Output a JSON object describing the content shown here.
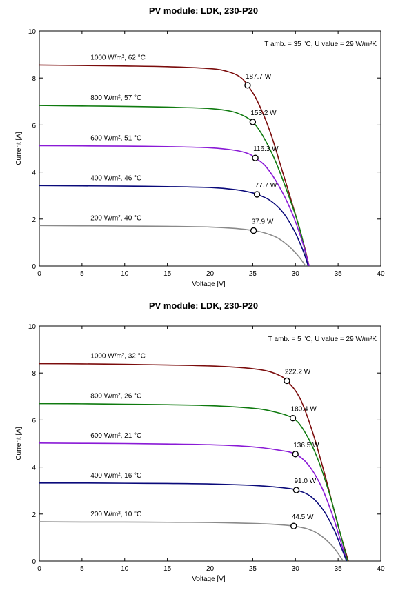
{
  "chart_data": [
    {
      "type": "line",
      "title": "PV module:  LDK,  230-P20",
      "annotation": "T amb. = 35 °C,  U value = 29 W/m²K",
      "xlabel": "Voltage [V]",
      "ylabel": "Current [A]",
      "xlim": [
        0,
        40
      ],
      "ylim": [
        0,
        10
      ],
      "xticks": [
        0,
        5,
        10,
        15,
        20,
        25,
        30,
        35,
        40
      ],
      "yticks": [
        0,
        2,
        4,
        6,
        8,
        10
      ],
      "grid": false,
      "series": [
        {
          "name": "1000 W/m², 62 °C",
          "color": "#7b0c0c",
          "isc": 8.55,
          "voc": 31.6,
          "mpp": {
            "v": 24.4,
            "i": 7.69,
            "label": "187.7 W"
          },
          "points": [
            [
              0,
              8.55
            ],
            [
              5,
              8.53
            ],
            [
              10,
              8.51
            ],
            [
              15,
              8.48
            ],
            [
              20,
              8.4
            ],
            [
              22,
              8.28
            ],
            [
              23.5,
              8.05
            ],
            [
              24.4,
              7.69
            ],
            [
              25.5,
              7.05
            ],
            [
              27,
              5.75
            ],
            [
              28.5,
              4.0
            ],
            [
              30,
              2.2
            ],
            [
              31,
              0.9
            ],
            [
              31.6,
              0
            ]
          ]
        },
        {
          "name": "800 W/m², 57 °C",
          "color": "#0f7a0f",
          "isc": 6.83,
          "voc": 31.5,
          "mpp": {
            "v": 25.0,
            "i": 6.13,
            "label": "153.2 W"
          },
          "points": [
            [
              0,
              6.83
            ],
            [
              5,
              6.81
            ],
            [
              10,
              6.79
            ],
            [
              15,
              6.76
            ],
            [
              20,
              6.7
            ],
            [
              22.5,
              6.58
            ],
            [
              24,
              6.38
            ],
            [
              25.0,
              6.13
            ],
            [
              26,
              5.65
            ],
            [
              27.5,
              4.6
            ],
            [
              29,
              3.2
            ],
            [
              30.5,
              1.6
            ],
            [
              31.5,
              0
            ]
          ]
        },
        {
          "name": "600 W/m², 51 °C",
          "color": "#8a1ad6",
          "isc": 5.12,
          "voc": 31.6,
          "mpp": {
            "v": 25.3,
            "i": 4.6,
            "label": "116.3 W"
          },
          "points": [
            [
              0,
              5.12
            ],
            [
              5,
              5.11
            ],
            [
              10,
              5.1
            ],
            [
              15,
              5.08
            ],
            [
              20,
              5.03
            ],
            [
              23,
              4.92
            ],
            [
              24.5,
              4.78
            ],
            [
              25.3,
              4.6
            ],
            [
              26.5,
              4.25
            ],
            [
              28,
              3.45
            ],
            [
              29.5,
              2.35
            ],
            [
              30.8,
              1.05
            ],
            [
              31.6,
              0
            ]
          ]
        },
        {
          "name": "400 W/m², 46 °C",
          "color": "#0a0a7a",
          "isc": 3.42,
          "voc": 31.5,
          "mpp": {
            "v": 25.5,
            "i": 3.05,
            "label": "77.7 W"
          },
          "points": [
            [
              0,
              3.42
            ],
            [
              5,
              3.41
            ],
            [
              10,
              3.4
            ],
            [
              15,
              3.38
            ],
            [
              20,
              3.34
            ],
            [
              23,
              3.25
            ],
            [
              24.8,
              3.13
            ],
            [
              25.5,
              3.05
            ],
            [
              27,
              2.8
            ],
            [
              28.5,
              2.3
            ],
            [
              29.8,
              1.55
            ],
            [
              30.9,
              0.65
            ],
            [
              31.5,
              0
            ]
          ]
        },
        {
          "name": "200 W/m², 40 °C",
          "color": "#8a8a8a",
          "isc": 1.72,
          "voc": 31.2,
          "mpp": {
            "v": 25.1,
            "i": 1.51,
            "label": "37.9 W"
          },
          "points": [
            [
              0,
              1.72
            ],
            [
              5,
              1.71
            ],
            [
              10,
              1.7
            ],
            [
              15,
              1.69
            ],
            [
              20,
              1.66
            ],
            [
              23,
              1.6
            ],
            [
              25.1,
              1.51
            ],
            [
              26.5,
              1.4
            ],
            [
              28,
              1.18
            ],
            [
              29.3,
              0.82
            ],
            [
              30.4,
              0.4
            ],
            [
              31.2,
              0
            ]
          ]
        }
      ]
    },
    {
      "type": "line",
      "title": "PV module:  LDK,  230-P20",
      "annotation": "T amb. = 5 °C,  U value = 29 W/m²K",
      "xlabel": "Voltage [V]",
      "ylabel": "Current [A]",
      "xlim": [
        0,
        40
      ],
      "ylim": [
        0,
        10
      ],
      "xticks": [
        0,
        5,
        10,
        15,
        20,
        25,
        30,
        35,
        40
      ],
      "yticks": [
        0,
        2,
        4,
        6,
        8,
        10
      ],
      "grid": false,
      "series": [
        {
          "name": "1000 W/m², 32 °C",
          "color": "#7b0c0c",
          "isc": 8.4,
          "voc": 36.2,
          "mpp": {
            "v": 29.0,
            "i": 7.67,
            "label": "222.2 W"
          },
          "points": [
            [
              0,
              8.4
            ],
            [
              5,
              8.39
            ],
            [
              10,
              8.37
            ],
            [
              15,
              8.34
            ],
            [
              20,
              8.3
            ],
            [
              24,
              8.22
            ],
            [
              26.5,
              8.1
            ],
            [
              28,
              7.92
            ],
            [
              29.0,
              7.67
            ],
            [
              30.5,
              6.95
            ],
            [
              32,
              5.5
            ],
            [
              33.5,
              3.6
            ],
            [
              35,
              1.5
            ],
            [
              36.2,
              0
            ]
          ]
        },
        {
          "name": "800 W/m², 26 °C",
          "color": "#0f7a0f",
          "isc": 6.7,
          "voc": 36.1,
          "mpp": {
            "v": 29.7,
            "i": 6.08,
            "label": "180.4 W"
          },
          "points": [
            [
              0,
              6.7
            ],
            [
              5,
              6.69
            ],
            [
              10,
              6.67
            ],
            [
              15,
              6.65
            ],
            [
              20,
              6.61
            ],
            [
              25,
              6.5
            ],
            [
              27.5,
              6.35
            ],
            [
              29.7,
              6.08
            ],
            [
              31,
              5.55
            ],
            [
              32.5,
              4.45
            ],
            [
              34,
              2.85
            ],
            [
              35.2,
              1.25
            ],
            [
              36.1,
              0
            ]
          ]
        },
        {
          "name": "600 W/m², 21 °C",
          "color": "#8a1ad6",
          "isc": 5.02,
          "voc": 36.0,
          "mpp": {
            "v": 30.0,
            "i": 4.55,
            "label": "136.5 W"
          },
          "points": [
            [
              0,
              5.02
            ],
            [
              5,
              5.01
            ],
            [
              10,
              5.0
            ],
            [
              15,
              4.98
            ],
            [
              20,
              4.95
            ],
            [
              25,
              4.86
            ],
            [
              28,
              4.72
            ],
            [
              30.0,
              4.55
            ],
            [
              31.5,
              4.1
            ],
            [
              33,
              3.2
            ],
            [
              34.3,
              2.0
            ],
            [
              35.3,
              0.85
            ],
            [
              36.0,
              0
            ]
          ]
        },
        {
          "name": "400 W/m², 16 °C",
          "color": "#0a0a7a",
          "isc": 3.32,
          "voc": 36.0,
          "mpp": {
            "v": 30.1,
            "i": 3.02,
            "label": "91.0 W"
          },
          "points": [
            [
              0,
              3.32
            ],
            [
              5,
              3.32
            ],
            [
              10,
              3.31
            ],
            [
              15,
              3.3
            ],
            [
              20,
              3.28
            ],
            [
              25,
              3.22
            ],
            [
              28.5,
              3.12
            ],
            [
              30.1,
              3.02
            ],
            [
              31.8,
              2.75
            ],
            [
              33.3,
              2.15
            ],
            [
              34.5,
              1.35
            ],
            [
              35.4,
              0.55
            ],
            [
              36.0,
              0
            ]
          ]
        },
        {
          "name": "200 W/m², 10 °C",
          "color": "#8a8a8a",
          "isc": 1.67,
          "voc": 35.6,
          "mpp": {
            "v": 29.8,
            "i": 1.49,
            "label": "44.5 W"
          },
          "points": [
            [
              0,
              1.67
            ],
            [
              5,
              1.66
            ],
            [
              10,
              1.66
            ],
            [
              15,
              1.65
            ],
            [
              20,
              1.64
            ],
            [
              25,
              1.6
            ],
            [
              28,
              1.55
            ],
            [
              29.8,
              1.49
            ],
            [
              31.5,
              1.36
            ],
            [
              33,
              1.08
            ],
            [
              34.3,
              0.65
            ],
            [
              35.0,
              0.32
            ],
            [
              35.6,
              0
            ]
          ]
        }
      ]
    }
  ]
}
